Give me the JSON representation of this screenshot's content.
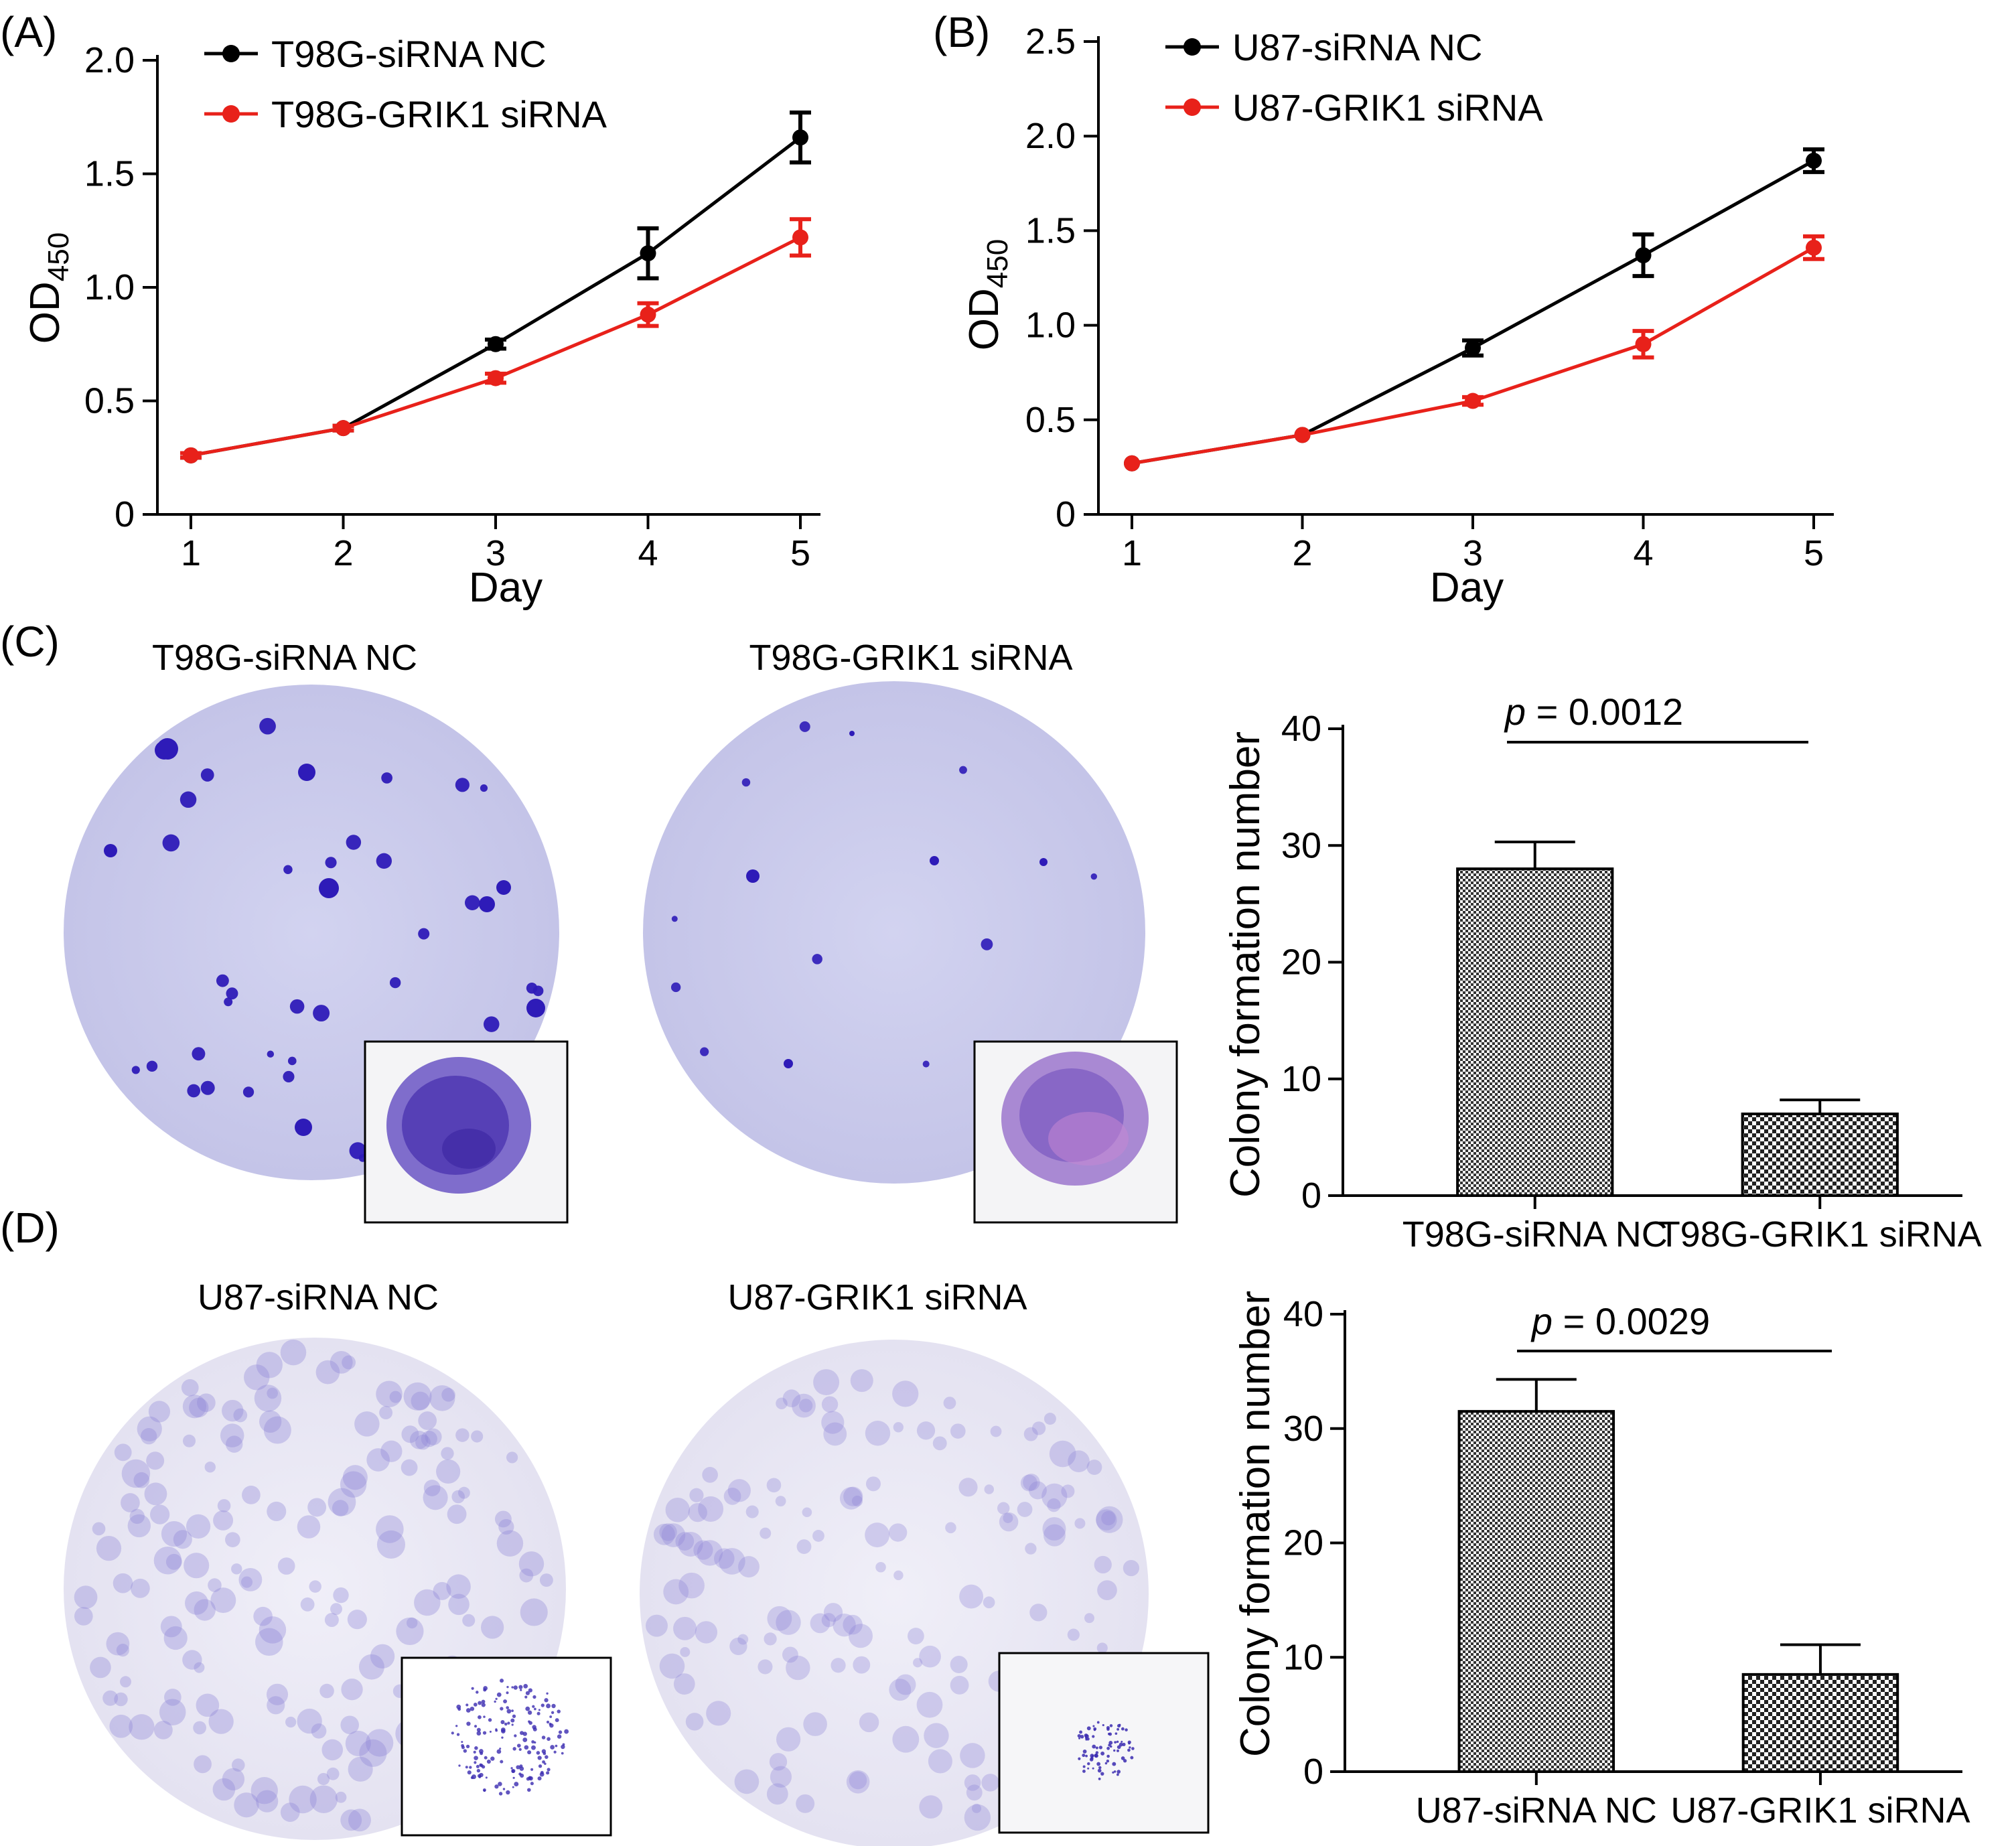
{
  "panels": {
    "a": "(A)",
    "b": "(B)",
    "c": "(C)",
    "d": "(D)"
  },
  "colors": {
    "nc": "#000000",
    "sirna": "#e8211a",
    "plate": "#cfcfee",
    "colony": "#2e1bb8",
    "colony_light": "#8d84d8"
  },
  "chart_data": [
    {
      "id": "A",
      "type": "line",
      "xlabel": "Day",
      "ylabel": "OD",
      "ylabel_sub": "450",
      "x": [
        1,
        2,
        3,
        4,
        5
      ],
      "xticks": [
        "1",
        "2",
        "3",
        "4",
        "5"
      ],
      "yticks": [
        "0",
        "0.5",
        "1.0",
        "1.5",
        "2.0"
      ],
      "ylim": [
        0,
        2.0
      ],
      "series": [
        {
          "name": "T98G-siRNA NC",
          "color": "#000000",
          "values": [
            0.26,
            0.38,
            0.75,
            1.15,
            1.66
          ],
          "errors": [
            0.01,
            0.01,
            0.02,
            0.11,
            0.11
          ]
        },
        {
          "name": "T98G-GRIK1  siRNA",
          "color": "#e8211a",
          "values": [
            0.26,
            0.38,
            0.6,
            0.88,
            1.22
          ],
          "errors": [
            0.01,
            0.01,
            0.02,
            0.05,
            0.08
          ]
        }
      ]
    },
    {
      "id": "B",
      "type": "line",
      "xlabel": "Day",
      "ylabel": "OD",
      "ylabel_sub": "450",
      "x": [
        1,
        2,
        3,
        4,
        5
      ],
      "xticks": [
        "1",
        "2",
        "3",
        "4",
        "5"
      ],
      "yticks": [
        "0",
        "0.5",
        "1.0",
        "1.5",
        "2.0",
        "2.5"
      ],
      "ylim": [
        0,
        2.5
      ],
      "series": [
        {
          "name": "U87-siRNA NC",
          "color": "#000000",
          "values": [
            0.27,
            0.42,
            0.88,
            1.37,
            1.87
          ],
          "errors": [
            0.01,
            0.01,
            0.04,
            0.11,
            0.06
          ]
        },
        {
          "name": "U87-GRIK1  siRNA",
          "color": "#e8211a",
          "values": [
            0.27,
            0.42,
            0.6,
            0.9,
            1.41
          ],
          "errors": [
            0.01,
            0.01,
            0.02,
            0.07,
            0.06
          ]
        }
      ]
    },
    {
      "id": "C",
      "type": "bar",
      "ylabel": "Colony formation number",
      "categories": [
        "T98G-siRNA NC",
        "T98G-GRIK1  siRNA"
      ],
      "values": [
        28,
        7
      ],
      "errors": [
        2.3,
        1.2
      ],
      "yticks": [
        "0",
        "10",
        "20",
        "30",
        "40"
      ],
      "ylim": [
        0,
        40
      ],
      "p_italic": "p",
      "p_text": " = 0.0012"
    },
    {
      "id": "D",
      "type": "bar",
      "ylabel": "Colony formation number",
      "categories": [
        "U87-siRNA NC",
        "U87-GRIK1  siRNA"
      ],
      "values": [
        31.5,
        8.5
      ],
      "errors": [
        2.8,
        2.6
      ],
      "yticks": [
        "0",
        "10",
        "20",
        "30",
        "40"
      ],
      "ylim": [
        0,
        40
      ],
      "p_italic": "p",
      "p_text": " = 0.0029"
    }
  ],
  "plates": {
    "c_nc_title": "T98G-siRNA NC",
    "c_si_title": "T98G-GRIK1  siRNA",
    "d_nc_title": "U87-siRNA NC",
    "d_si_title": "U87-GRIK1  siRNA"
  }
}
